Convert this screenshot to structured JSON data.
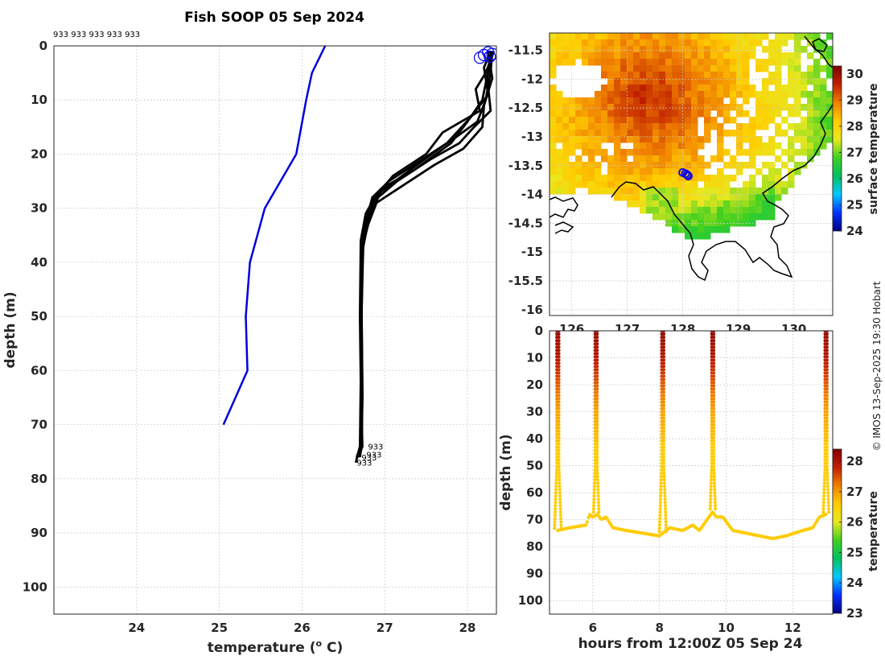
{
  "title": "Fish SOOP 05 Sep 2024",
  "credit": "© IMOS 13-Sep-2025 19:30 Hobart",
  "colors": {
    "climatology": "#0000dd",
    "profile": "#000000",
    "marker": "#0000ee",
    "land": "#ffffff",
    "grid": "#c8c8c8"
  },
  "colormap_stops": [
    "#000080",
    "#0030ff",
    "#00c8ff",
    "#00c060",
    "#40d020",
    "#e8e820",
    "#ffcc00",
    "#f08000",
    "#c02000",
    "#800000"
  ],
  "chart_data": [
    {
      "type": "line",
      "name": "profile-panel",
      "title": "Fish SOOP 05 Sep 2024",
      "xlabel": "temperature (",
      "xlabel_sup": "o",
      "xlabel_end": " C)",
      "ylabel": "depth (m)",
      "xlim": [
        23,
        28.35
      ],
      "ylim": [
        105,
        0
      ],
      "xticks": [
        24,
        25,
        26,
        27,
        28
      ],
      "yticks": [
        0,
        10,
        20,
        30,
        40,
        50,
        60,
        70,
        80,
        90,
        100
      ],
      "top_label": "933 933 933 933 933",
      "bottom_label": "933",
      "series": [
        {
          "name": "climatology",
          "x": [
            26.28,
            26.12,
            26.05,
            25.93,
            25.55,
            25.37,
            25.32,
            25.34,
            25.05
          ],
          "y": [
            0,
            5,
            10,
            20,
            30,
            40,
            50,
            60,
            70
          ]
        },
        {
          "name": "profile-1",
          "x": [
            28.3,
            28.28,
            28.22,
            28.12,
            27.85,
            27.45,
            27.05,
            26.85,
            26.78,
            26.72,
            26.72,
            26.73,
            26.72,
            26.68
          ],
          "y": [
            1,
            5,
            10,
            14,
            17,
            21,
            25,
            28,
            32,
            38,
            50,
            65,
            74,
            76
          ]
        },
        {
          "name": "profile-2",
          "x": [
            28.28,
            28.2,
            28.25,
            28.05,
            27.75,
            27.3,
            26.95,
            26.82,
            26.75,
            26.72,
            26.71,
            26.72,
            26.71,
            26.66
          ],
          "y": [
            1,
            4,
            9,
            13,
            18,
            23,
            27,
            30,
            34,
            39,
            52,
            66,
            74,
            76
          ]
        },
        {
          "name": "profile-3",
          "x": [
            28.25,
            28.3,
            28.2,
            28.18,
            27.95,
            27.6,
            27.2,
            26.9,
            26.8,
            26.73,
            26.72,
            26.73,
            26.72,
            26.7
          ],
          "y": [
            1,
            6,
            11,
            15,
            19,
            22,
            26,
            29,
            33,
            37,
            48,
            64,
            74,
            76
          ]
        },
        {
          "name": "profile-4",
          "x": [
            28.32,
            28.22,
            28.1,
            28.15,
            27.7,
            27.5,
            27.1,
            26.88,
            26.77,
            26.71,
            26.7,
            26.71,
            26.7,
            26.65
          ],
          "y": [
            1,
            5,
            8,
            12,
            16,
            20,
            24,
            28,
            31,
            36,
            50,
            62,
            74,
            77
          ]
        },
        {
          "name": "profile-5",
          "x": [
            28.27,
            28.26,
            28.18,
            28.0,
            27.8,
            27.35,
            27.0,
            26.86,
            26.79,
            26.73,
            26.72,
            26.71,
            26.73,
            26.68
          ],
          "y": [
            1,
            4,
            10,
            14,
            18,
            23,
            26,
            29,
            33,
            38,
            51,
            63,
            74,
            76
          ]
        },
        {
          "name": "profile-6",
          "x": [
            28.3,
            28.24,
            28.28,
            28.08,
            27.9,
            27.55,
            27.15,
            26.92,
            26.81,
            26.74,
            26.72,
            26.72,
            26.72,
            26.67
          ],
          "y": [
            1,
            6,
            12,
            15,
            18,
            21,
            25,
            28,
            32,
            37,
            49,
            64,
            74,
            76
          ]
        }
      ],
      "markers": {
        "x": [
          28.15,
          28.2,
          28.25,
          28.27,
          28.3
        ],
        "y": [
          1,
          0.5,
          0,
          0.8,
          0.3
        ]
      }
    },
    {
      "type": "heatmap",
      "name": "map-panel",
      "xticks": [
        126,
        127,
        128,
        129,
        130
      ],
      "yticks": [
        -11.5,
        -12,
        -12.5,
        -13,
        -13.5,
        -14,
        -14.5,
        -15,
        -15.5,
        -16
      ],
      "xlim": [
        125.6,
        130.7
      ],
      "ylim": [
        -16.1,
        -11.2
      ],
      "colorbar_label": "surface temperature",
      "colorbar_ticks": [
        24,
        25,
        26,
        27,
        28,
        29,
        30
      ],
      "colorbar_range": [
        24,
        30.3
      ],
      "vessel_positions": {
        "lon": [
          128.0,
          128.05,
          128.08,
          128.1
        ],
        "lat": [
          -13.62,
          -13.64,
          -13.66,
          -13.68
        ]
      }
    },
    {
      "type": "scatter",
      "name": "section-panel",
      "xlabel": "hours from 12:00Z 05 Sep 24",
      "ylabel": "depth (m)",
      "xlim": [
        4.7,
        13.2
      ],
      "ylim": [
        105,
        0
      ],
      "xticks": [
        6,
        8,
        10,
        12
      ],
      "yticks": [
        0,
        10,
        20,
        30,
        40,
        50,
        60,
        70,
        80,
        90,
        100
      ],
      "colorbar_label": "temperature",
      "colorbar_ticks": [
        23,
        24,
        25,
        26,
        27,
        28
      ],
      "colorbar_range": [
        23,
        28.4
      ],
      "cast_hours": [
        4.95,
        6.1,
        8.1,
        9.6,
        13.0
      ],
      "bottom_track": {
        "x": [
          4.95,
          5.3,
          5.8,
          5.9,
          6.0,
          6.15,
          6.25,
          6.4,
          6.6,
          7.0,
          7.5,
          8.0,
          8.1,
          8.3,
          8.7,
          9.0,
          9.2,
          9.6,
          9.7,
          9.9,
          10.2,
          10.6,
          11.0,
          11.4,
          11.8,
          12.3,
          12.6,
          12.8,
          13.0
        ],
        "y": [
          74,
          73,
          72,
          68,
          69,
          68,
          70,
          69,
          73,
          74,
          75,
          76,
          75,
          73,
          74,
          72,
          74,
          67,
          69,
          69,
          74,
          75,
          76,
          77,
          76,
          74,
          73,
          69,
          68
        ]
      }
    }
  ]
}
